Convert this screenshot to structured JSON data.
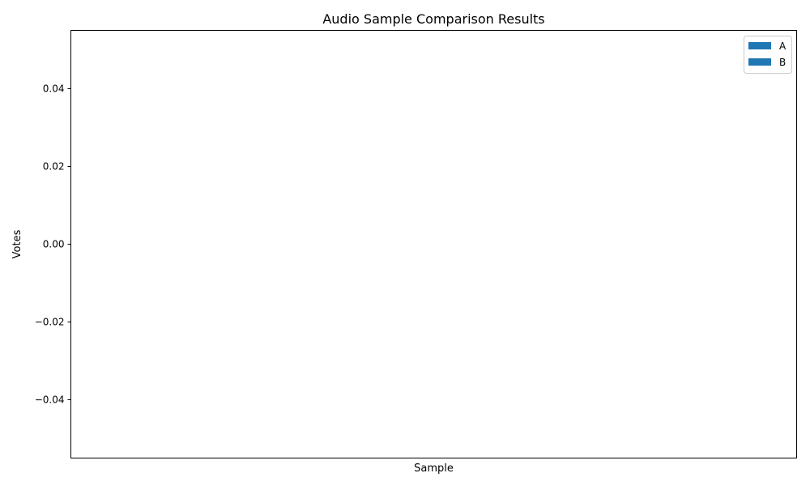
{
  "chart_data": {
    "type": "bar",
    "title": "Audio Sample Comparison Results",
    "xlabel": "Sample",
    "ylabel": "Votes",
    "categories": [],
    "series": [
      {
        "name": "A",
        "values": [],
        "color": "#1f77b4"
      },
      {
        "name": "B",
        "values": [],
        "color": "#1f77b4"
      }
    ],
    "ylim": [
      -0.055,
      0.055
    ],
    "yticks": [
      -0.04,
      -0.02,
      0.0,
      0.02,
      0.04
    ],
    "ytick_labels": [
      "−0.04",
      "−0.02",
      "0.00",
      "0.02",
      "0.04"
    ],
    "grid": false,
    "legend_position": "top-right"
  }
}
